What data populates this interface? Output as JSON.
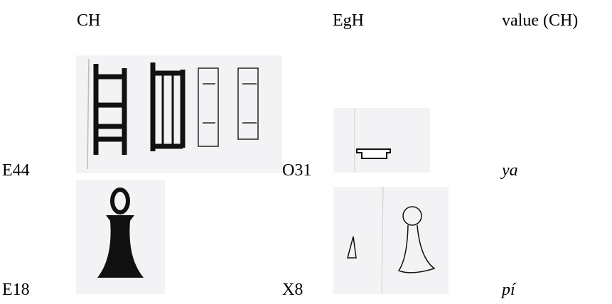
{
  "table": {
    "header": [
      "CH",
      "EgH",
      "value (CH)"
    ],
    "rows": [
      [
        "E44",
        "O31",
        "ya"
      ],
      [
        "E18",
        "X8",
        "pí"
      ]
    ]
  }
}
